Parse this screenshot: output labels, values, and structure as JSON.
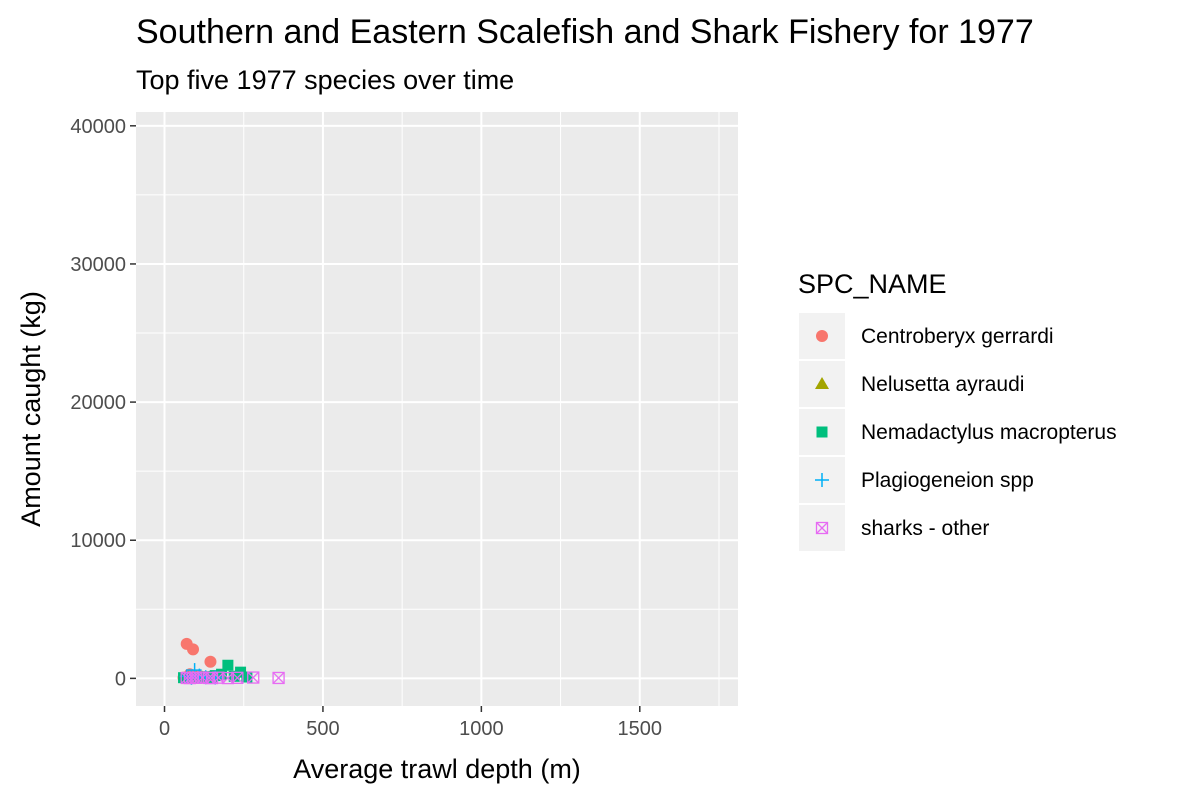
{
  "chart_data": {
    "type": "scatter",
    "title": "Southern and Eastern Scalefish and Shark Fishery for 1977",
    "subtitle": "Top five 1977 species over time",
    "xlabel": "Average trawl depth (m)",
    "ylabel": "Amount caught (kg)",
    "xlim": [
      -90,
      1810
    ],
    "ylim": [
      -2000,
      41000
    ],
    "xticks": [
      0,
      500,
      1000,
      1500
    ],
    "yticks": [
      0,
      10000,
      20000,
      30000,
      40000
    ],
    "xtick_labels": [
      "0",
      "500",
      "1000",
      "1500"
    ],
    "ytick_labels": [
      "0",
      "10000",
      "20000",
      "30000",
      "40000"
    ],
    "grid": true,
    "legend": {
      "title": "SPC_NAME",
      "placement": "right"
    },
    "series": [
      {
        "name": "Centroberyx gerrardi",
        "color": "#F8766D",
        "shape": "circle",
        "points": [
          [
            70,
            2500
          ],
          [
            90,
            2100
          ],
          [
            145,
            1200
          ],
          [
            80,
            300
          ],
          [
            110,
            150
          ],
          [
            60,
            50
          ],
          [
            130,
            100
          ],
          [
            95,
            60
          ]
        ]
      },
      {
        "name": "Nelusetta ayraudi",
        "color": "#A3A500",
        "shape": "triangle",
        "points": [
          [
            75,
            80
          ],
          [
            100,
            120
          ],
          [
            120,
            60
          ],
          [
            140,
            40
          ]
        ]
      },
      {
        "name": "Nemadactylus macropterus",
        "color": "#00BF7D",
        "shape": "square",
        "points": [
          [
            200,
            950
          ],
          [
            240,
            450
          ],
          [
            180,
            300
          ],
          [
            160,
            200
          ],
          [
            220,
            150
          ],
          [
            130,
            120
          ],
          [
            90,
            80
          ],
          [
            60,
            50
          ],
          [
            260,
            100
          ],
          [
            150,
            60
          ]
        ]
      },
      {
        "name": "Plagiogeneion spp",
        "color": "#00B0F6",
        "shape": "plus",
        "points": [
          [
            95,
            600
          ],
          [
            110,
            200
          ],
          [
            70,
            150
          ],
          [
            130,
            80
          ],
          [
            160,
            60
          ],
          [
            85,
            40
          ]
        ]
      },
      {
        "name": "sharks - other",
        "color": "#E76BF3",
        "shape": "square-cross",
        "points": [
          [
            360,
            30
          ],
          [
            280,
            60
          ],
          [
            230,
            40
          ],
          [
            200,
            20
          ],
          [
            170,
            50
          ],
          [
            140,
            30
          ],
          [
            120,
            60
          ],
          [
            100,
            40
          ],
          [
            80,
            20
          ],
          [
            70,
            30
          ],
          [
            150,
            20
          ],
          [
            90,
            50
          ]
        ]
      }
    ]
  }
}
